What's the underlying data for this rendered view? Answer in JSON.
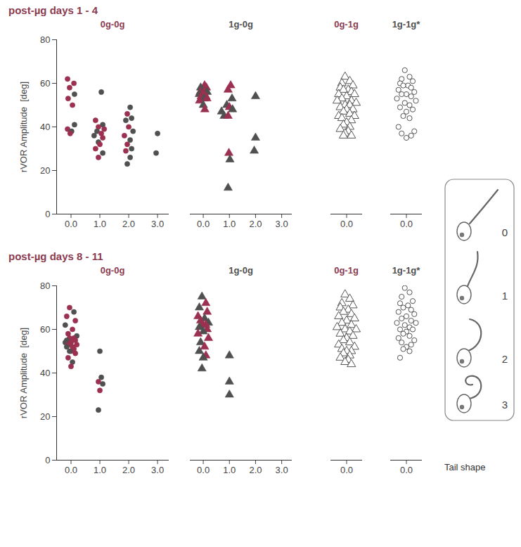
{
  "chart_data": [
    {
      "type": "scatter",
      "title": "post-µg days 1 - 4",
      "ylabel": "rVOR Amplitude  [deg]",
      "ylim": [
        0,
        80
      ],
      "yticks": [
        0,
        20,
        40,
        60,
        80
      ],
      "groups": [
        {
          "name": "0g-0g",
          "color": "#8b3a50",
          "marker": "circle",
          "xlim": [
            -0.5,
            3.4
          ],
          "xticks": [
            0,
            1,
            2,
            3
          ],
          "x": [
            -0.12,
            0.1,
            -0.05,
            0.12,
            -0.1,
            0.05,
            0.12,
            -0.12,
            0.02,
            -0.03,
            1.05,
            0.85,
            1.1,
            0.95,
            1.15,
            0.9,
            1.05,
            0.8,
            1.1,
            0.95,
            1.0,
            0.85,
            1.1,
            0.95,
            2.05,
            1.95,
            2.1,
            1.9,
            2.0,
            2.15,
            1.85,
            2.05,
            1.95,
            2.1,
            1.9,
            2.05,
            1.95,
            3.0,
            2.95
          ],
          "values": [
            62,
            60,
            58,
            55,
            53,
            50,
            41,
            39,
            38,
            37,
            56,
            43,
            41,
            40,
            39,
            38,
            37,
            36,
            35,
            33,
            32,
            30,
            28,
            26,
            49,
            46,
            44,
            43,
            40,
            38,
            36,
            34,
            32,
            30,
            29,
            26,
            23,
            37,
            28
          ],
          "colors": [
            "#9b3050",
            "#9b3050",
            "#9b3050",
            "#505050",
            "#9b3050",
            "#9b3050",
            "#505050",
            "#9b3050",
            "#505050",
            "#9b3050",
            "#505050",
            "#9b3050",
            "#505050",
            "#9b3050",
            "#9b3050",
            "#505050",
            "#9b3050",
            "#505050",
            "#9b3050",
            "#505050",
            "#9b3050",
            "#9b3050",
            "#505050",
            "#9b3050",
            "#505050",
            "#9b3050",
            "#505050",
            "#505050",
            "#9b3050",
            "#505050",
            "#9b3050",
            "#505050",
            "#9b3050",
            "#505050",
            "#9b3050",
            "#505050",
            "#505050",
            "#505050",
            "#505050"
          ]
        },
        {
          "name": "1g-0g",
          "color": "#505050",
          "marker": "triangle",
          "xlim": [
            -0.5,
            3.4
          ],
          "xticks": [
            0,
            1,
            2,
            3
          ],
          "x": [
            0.05,
            -0.1,
            0.12,
            -0.05,
            0.08,
            -0.12,
            0.15,
            0.0,
            -0.15,
            0.1,
            -0.08,
            0.03,
            0.14,
            -0.14,
            0.0,
            0.06,
            0.7,
            0.8,
            1.05,
            0.95,
            1.1,
            0.9,
            1.0,
            1.12,
            0.95,
            0.98,
            1.02,
            0.95,
            2.0,
            2.0,
            1.95
          ],
          "values": [
            59,
            58,
            58,
            57,
            57,
            56,
            56,
            55,
            55,
            54,
            54,
            53,
            53,
            52,
            50,
            48,
            47,
            45,
            59,
            57,
            53,
            50,
            49,
            48,
            45,
            28,
            25,
            12,
            54,
            35,
            29
          ],
          "colors": [
            "#9b3050",
            "#505050",
            "#9b3050",
            "#505050",
            "#9b3050",
            "#9b3050",
            "#505050",
            "#9b3050",
            "#505050",
            "#9b3050",
            "#9b3050",
            "#505050",
            "#9b3050",
            "#9b3050",
            "#505050",
            "#9b3050",
            "#505050",
            "#505050",
            "#9b3050",
            "#9b3050",
            "#505050",
            "#505050",
            "#9b3050",
            "#505050",
            "#9b3050",
            "#9b3050",
            "#505050",
            "#505050",
            "#505050",
            "#505050",
            "#505050"
          ]
        },
        {
          "name": "0g-1g",
          "color": "#8b3a50",
          "marker": "open triangle",
          "xlim": [
            -0.5,
            0.5
          ],
          "xticks": [
            0
          ],
          "x": [
            -0.05,
            0.1,
            -0.15,
            0.2,
            -0.2,
            0.05,
            -0.1,
            0.15,
            -0.25,
            0.25,
            0.0,
            -0.15,
            0.15,
            -0.3,
            0.3,
            -0.05,
            0.1,
            -0.2,
            0.2,
            0.0,
            -0.1,
            0.1,
            -0.25,
            0.25,
            -0.15,
            0.15,
            0.0,
            -0.1,
            0.1,
            -0.2,
            0.05,
            -0.05,
            0.15,
            -0.1
          ],
          "values": [
            63,
            61,
            60,
            59,
            58,
            57,
            57,
            56,
            55,
            55,
            54,
            53,
            52,
            52,
            51,
            50,
            50,
            49,
            48,
            48,
            47,
            46,
            45,
            45,
            44,
            43,
            42,
            41,
            40,
            39,
            38,
            37,
            36,
            36
          ],
          "colors": [
            "#555555",
            "#555555",
            "#555555",
            "#555555",
            "#555555",
            "#555555",
            "#555555",
            "#555555",
            "#555555",
            "#555555",
            "#555555",
            "#555555",
            "#555555",
            "#555555",
            "#555555",
            "#555555",
            "#555555",
            "#555555",
            "#555555",
            "#555555",
            "#555555",
            "#555555",
            "#555555",
            "#555555",
            "#555555",
            "#555555",
            "#555555",
            "#555555",
            "#555555",
            "#555555",
            "#555555",
            "#555555",
            "#555555",
            "#555555"
          ]
        },
        {
          "name": "1g-1g*",
          "color": "#505050",
          "marker": "open circle",
          "xlim": [
            -0.5,
            0.5
          ],
          "xticks": [
            0
          ],
          "x": [
            -0.05,
            0.1,
            -0.15,
            0.2,
            -0.2,
            0.05,
            -0.1,
            0.15,
            -0.25,
            0.25,
            0.0,
            -0.15,
            0.15,
            -0.3,
            0.3,
            -0.05,
            0.1,
            -0.2,
            0.2,
            0.0,
            -0.1,
            0.1,
            -0.25,
            0.25,
            -0.15,
            0.15,
            0.0
          ],
          "values": [
            66,
            63,
            62,
            61,
            60,
            59,
            59,
            58,
            57,
            56,
            55,
            55,
            54,
            53,
            52,
            51,
            50,
            49,
            48,
            47,
            45,
            44,
            40,
            38,
            37,
            36,
            35
          ],
          "colors": [
            "#555555",
            "#555555",
            "#555555",
            "#555555",
            "#555555",
            "#555555",
            "#555555",
            "#555555",
            "#555555",
            "#555555",
            "#555555",
            "#555555",
            "#555555",
            "#555555",
            "#555555",
            "#555555",
            "#555555",
            "#555555",
            "#555555",
            "#555555",
            "#555555",
            "#555555",
            "#555555",
            "#555555",
            "#555555",
            "#555555",
            "#555555"
          ]
        }
      ]
    },
    {
      "type": "scatter",
      "title": "post-µg days 8 - 11",
      "ylabel": "rVOR Amplitude  [deg]",
      "xlabel": "Tail shape",
      "ylim": [
        0,
        80
      ],
      "yticks": [
        0,
        20,
        40,
        60,
        80
      ],
      "groups": [
        {
          "name": "0g-0g",
          "color": "#8b3a50",
          "marker": "circle",
          "xlim": [
            -0.5,
            3.4
          ],
          "xticks": [
            0,
            1,
            2,
            3
          ],
          "x": [
            -0.05,
            0.1,
            -0.15,
            0.15,
            -0.2,
            0.05,
            -0.1,
            0.2,
            -0.05,
            0.1,
            -0.15,
            0.15,
            0.0,
            -0.2,
            0.2,
            -0.1,
            0.05,
            -0.15,
            0.1,
            0.0,
            -0.05,
            0.15,
            -0.1,
            0.05,
            0.0,
            1.0,
            1.05,
            0.95,
            1.1,
            1.0,
            0.95
          ],
          "values": [
            70,
            68,
            66,
            64,
            62,
            60,
            58,
            57,
            56,
            56,
            55,
            55,
            54,
            54,
            53,
            53,
            52,
            52,
            51,
            50,
            50,
            49,
            47,
            45,
            43,
            50,
            38,
            36,
            35,
            32,
            23
          ],
          "colors": [
            "#9b3050",
            "#505050",
            "#9b3050",
            "#9b3050",
            "#505050",
            "#9b3050",
            "#9b3050",
            "#505050",
            "#9b3050",
            "#9b3050",
            "#505050",
            "#9b3050",
            "#9b3050",
            "#505050",
            "#9b3050",
            "#9b3050",
            "#9b3050",
            "#505050",
            "#9b3050",
            "#9b3050",
            "#505050",
            "#9b3050",
            "#9b3050",
            "#505050",
            "#9b3050",
            "#505050",
            "#505050",
            "#9b3050",
            "#505050",
            "#9b3050",
            "#505050"
          ]
        },
        {
          "name": "1g-0g",
          "color": "#505050",
          "marker": "triangle",
          "xlim": [
            -0.5,
            3.4
          ],
          "xticks": [
            0,
            1,
            2,
            3
          ],
          "x": [
            -0.05,
            0.1,
            -0.15,
            0.15,
            -0.2,
            0.05,
            -0.1,
            0.2,
            -0.05,
            0.1,
            -0.15,
            0.15,
            0.0,
            -0.2,
            0.2,
            -0.1,
            0.05,
            -0.15,
            0.1,
            0.0,
            -0.05,
            1.0,
            1.0,
            1.0
          ],
          "values": [
            75,
            72,
            70,
            68,
            66,
            65,
            64,
            63,
            62,
            62,
            61,
            60,
            59,
            58,
            56,
            54,
            52,
            50,
            48,
            47,
            42,
            48,
            36,
            30
          ],
          "colors": [
            "#505050",
            "#9b3050",
            "#505050",
            "#9b3050",
            "#9b3050",
            "#505050",
            "#9b3050",
            "#505050",
            "#9b3050",
            "#9b3050",
            "#505050",
            "#9b3050",
            "#505050",
            "#9b3050",
            "#9b3050",
            "#505050",
            "#9b3050",
            "#505050",
            "#9b3050",
            "#505050",
            "#505050",
            "#505050",
            "#505050",
            "#505050"
          ]
        },
        {
          "name": "0g-1g",
          "color": "#8b3a50",
          "marker": "open triangle",
          "xlim": [
            -0.5,
            0.5
          ],
          "xticks": [
            0
          ],
          "x": [
            -0.05,
            0.1,
            -0.15,
            0.2,
            -0.2,
            0.05,
            -0.1,
            0.15,
            -0.25,
            0.25,
            0.0,
            -0.15,
            0.15,
            -0.3,
            0.3,
            -0.05,
            0.1,
            -0.2,
            0.2,
            0.0,
            -0.1,
            0.1,
            -0.25,
            0.25,
            -0.15,
            0.15,
            0.0,
            -0.1,
            0.1,
            -0.2,
            0.05,
            -0.05,
            0.15
          ],
          "values": [
            76,
            74,
            72,
            71,
            70,
            69,
            68,
            67,
            66,
            65,
            64,
            63,
            62,
            61,
            60,
            60,
            59,
            58,
            57,
            56,
            55,
            54,
            53,
            52,
            51,
            50,
            50,
            49,
            48,
            47,
            46,
            45,
            44
          ],
          "colors": [
            "#555555",
            "#555555",
            "#555555",
            "#555555",
            "#555555",
            "#555555",
            "#555555",
            "#555555",
            "#555555",
            "#555555",
            "#555555",
            "#555555",
            "#555555",
            "#555555",
            "#555555",
            "#555555",
            "#555555",
            "#555555",
            "#555555",
            "#555555",
            "#555555",
            "#555555",
            "#555555",
            "#555555",
            "#555555",
            "#555555",
            "#555555",
            "#555555",
            "#555555",
            "#555555",
            "#555555",
            "#555555",
            "#555555"
          ]
        },
        {
          "name": "1g-1g*",
          "color": "#505050",
          "marker": "open circle",
          "xlim": [
            -0.5,
            0.5
          ],
          "xticks": [
            0
          ],
          "x": [
            -0.05,
            0.1,
            -0.15,
            0.2,
            -0.2,
            0.05,
            -0.1,
            0.15,
            -0.25,
            0.25,
            0.0,
            -0.15,
            0.15,
            -0.3,
            0.3,
            -0.05,
            0.1,
            -0.2,
            0.2,
            0.0,
            -0.1,
            0.1,
            -0.25,
            0.25,
            -0.15,
            0.15,
            0.0,
            -0.1,
            0.1,
            -0.2
          ],
          "values": [
            79,
            77,
            75,
            73,
            72,
            71,
            70,
            69,
            68,
            67,
            66,
            65,
            64,
            63,
            63,
            62,
            61,
            60,
            60,
            59,
            58,
            57,
            56,
            55,
            54,
            53,
            52,
            51,
            50,
            47
          ],
          "colors": [
            "#555555",
            "#555555",
            "#555555",
            "#555555",
            "#555555",
            "#555555",
            "#555555",
            "#555555",
            "#555555",
            "#555555",
            "#555555",
            "#555555",
            "#555555",
            "#555555",
            "#555555",
            "#555555",
            "#555555",
            "#555555",
            "#555555",
            "#555555",
            "#555555",
            "#555555",
            "#555555",
            "#555555",
            "#555555",
            "#555555",
            "#555555",
            "#555555",
            "#555555",
            "#555555"
          ]
        }
      ]
    }
  ],
  "tail_shape_key": {
    "labels": [
      "0",
      "1",
      "2",
      "3"
    ]
  }
}
